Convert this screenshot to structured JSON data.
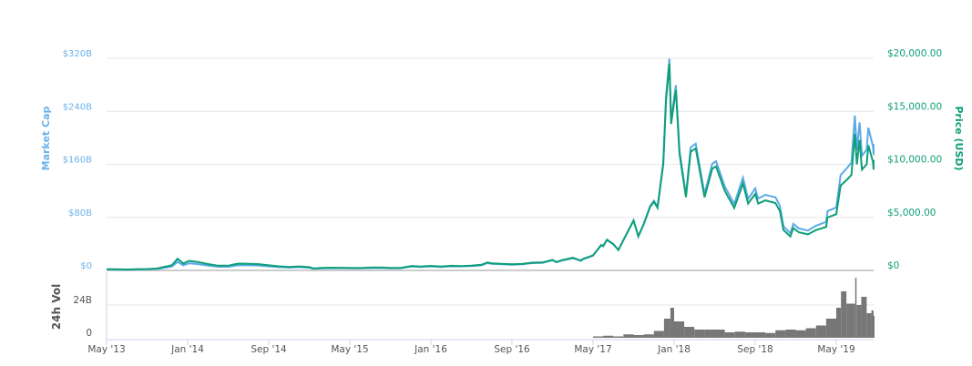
{
  "chart_data": {
    "type": "line",
    "left_axis": {
      "label": "Market Cap",
      "ticks": [
        "$0",
        "$80B",
        "$160B",
        "$240B",
        "$320B"
      ],
      "range": [
        0,
        320
      ],
      "unit": "billion USD",
      "color": "#6cb2eb"
    },
    "right_axis": {
      "label": "Price (USD)",
      "ticks": [
        "$0",
        "$5,000.00",
        "$10,000.00",
        "$15,000.00",
        "$20,000.00"
      ],
      "range": [
        0,
        20000
      ],
      "color": "#0e9f78"
    },
    "volume_axis": {
      "label": "24h Vol",
      "ticks": [
        "0",
        "24B"
      ],
      "unit": "billion USD",
      "color": "#777777"
    },
    "x_ticks": [
      "May '13",
      "Jan '14",
      "Sep '14",
      "May '15",
      "Jan '16",
      "Sep '16",
      "May '17",
      "Jan '18",
      "Sep '18",
      "May '19"
    ],
    "grid": true,
    "series": [
      {
        "name": "Market Cap",
        "color": "#5aaae6",
        "axis": "left"
      },
      {
        "name": "Price (USD)",
        "color": "#0e9f78",
        "axis": "right"
      },
      {
        "name": "24h Vol",
        "color": "#777777",
        "axis": "volume"
      }
    ],
    "price": [
      [
        "2013-05-01",
        120
      ],
      [
        "2013-06-01",
        108
      ],
      [
        "2013-07-01",
        90
      ],
      [
        "2013-08-01",
        120
      ],
      [
        "2013-09-01",
        130
      ],
      [
        "2013-10-01",
        180
      ],
      [
        "2013-11-15",
        500
      ],
      [
        "2013-12-01",
        1100
      ],
      [
        "2013-12-18",
        650
      ],
      [
        "2014-01-05",
        900
      ],
      [
        "2014-02-01",
        800
      ],
      [
        "2014-03-01",
        600
      ],
      [
        "2014-04-01",
        450
      ],
      [
        "2014-05-01",
        450
      ],
      [
        "2014-06-01",
        640
      ],
      [
        "2014-07-01",
        620
      ],
      [
        "2014-08-01",
        590
      ],
      [
        "2014-09-01",
        480
      ],
      [
        "2014-10-01",
        390
      ],
      [
        "2014-11-01",
        330
      ],
      [
        "2014-12-01",
        380
      ],
      [
        "2015-01-01",
        310
      ],
      [
        "2015-01-15",
        180
      ],
      [
        "2015-02-01",
        225
      ],
      [
        "2015-03-01",
        255
      ],
      [
        "2015-04-01",
        245
      ],
      [
        "2015-05-01",
        235
      ],
      [
        "2015-06-01",
        225
      ],
      [
        "2015-07-01",
        265
      ],
      [
        "2015-08-01",
        285
      ],
      [
        "2015-09-01",
        230
      ],
      [
        "2015-10-01",
        237
      ],
      [
        "2015-11-04",
        420
      ],
      [
        "2015-12-01",
        370
      ],
      [
        "2016-01-01",
        430
      ],
      [
        "2016-02-01",
        370
      ],
      [
        "2016-03-01",
        435
      ],
      [
        "2016-04-01",
        415
      ],
      [
        "2016-05-01",
        450
      ],
      [
        "2016-06-01",
        530
      ],
      [
        "2016-06-18",
        750
      ],
      [
        "2016-07-01",
        670
      ],
      [
        "2016-08-01",
        620
      ],
      [
        "2016-09-01",
        575
      ],
      [
        "2016-10-01",
        610
      ],
      [
        "2016-11-01",
        730
      ],
      [
        "2016-12-01",
        750
      ],
      [
        "2017-01-01",
        1000
      ],
      [
        "2017-01-12",
        800
      ],
      [
        "2017-02-01",
        980
      ],
      [
        "2017-03-01",
        1190
      ],
      [
        "2017-03-25",
        930
      ],
      [
        "2017-04-01",
        1080
      ],
      [
        "2017-05-01",
        1420
      ],
      [
        "2017-05-25",
        2400
      ],
      [
        "2017-06-01",
        2300
      ],
      [
        "2017-06-12",
        2900
      ],
      [
        "2017-07-01",
        2480
      ],
      [
        "2017-07-16",
        1930
      ],
      [
        "2017-08-01",
        2870
      ],
      [
        "2017-09-01",
        4700
      ],
      [
        "2017-09-15",
        3200
      ],
      [
        "2017-10-01",
        4340
      ],
      [
        "2017-10-20",
        6000
      ],
      [
        "2017-11-01",
        6470
      ],
      [
        "2017-11-12",
        5900
      ],
      [
        "2017-11-29",
        10000
      ],
      [
        "2017-12-07",
        16000
      ],
      [
        "2017-12-17",
        19500
      ],
      [
        "2017-12-22",
        13800
      ],
      [
        "2018-01-06",
        17000
      ],
      [
        "2018-01-17",
        11000
      ],
      [
        "2018-02-06",
        6900
      ],
      [
        "2018-02-20",
        11200
      ],
      [
        "2018-03-05",
        11500
      ],
      [
        "2018-03-31",
        6900
      ],
      [
        "2018-04-24",
        9600
      ],
      [
        "2018-05-05",
        9800
      ],
      [
        "2018-06-01",
        7500
      ],
      [
        "2018-06-29",
        5900
      ],
      [
        "2018-07-25",
        8200
      ],
      [
        "2018-08-10",
        6300
      ],
      [
        "2018-09-01",
        7200
      ],
      [
        "2018-09-10",
        6300
      ],
      [
        "2018-10-01",
        6600
      ],
      [
        "2018-11-01",
        6350
      ],
      [
        "2018-11-14",
        5600
      ],
      [
        "2018-11-25",
        3800
      ],
      [
        "2018-12-15",
        3200
      ],
      [
        "2018-12-24",
        4000
      ],
      [
        "2019-01-10",
        3600
      ],
      [
        "2019-02-07",
        3400
      ],
      [
        "2019-03-01",
        3800
      ],
      [
        "2019-04-01",
        4100
      ],
      [
        "2019-04-05",
        5000
      ],
      [
        "2019-05-01",
        5300
      ],
      [
        "2019-05-14",
        8000
      ],
      [
        "2019-06-01",
        8500
      ],
      [
        "2019-06-16",
        9000
      ],
      [
        "2019-06-26",
        12900
      ],
      [
        "2019-07-02",
        10000
      ],
      [
        "2019-07-10",
        12300
      ],
      [
        "2019-07-17",
        9500
      ],
      [
        "2019-07-31",
        10000
      ],
      [
        "2019-08-06",
        11800
      ],
      [
        "2019-08-20",
        10200
      ],
      [
        "2019-08-29",
        9500
      ],
      [
        "2019-09-05",
        10400
      ],
      [
        "2019-09-10",
        10100
      ]
    ],
    "volume": [
      [
        "2017-05-01",
        1.0
      ],
      [
        "2017-06-01",
        1.5
      ],
      [
        "2017-07-01",
        1.0
      ],
      [
        "2017-08-01",
        2.5
      ],
      [
        "2017-09-01",
        2.0
      ],
      [
        "2017-10-01",
        2.5
      ],
      [
        "2017-11-01",
        5.0
      ],
      [
        "2017-12-01",
        14
      ],
      [
        "2017-12-20",
        22
      ],
      [
        "2018-01-01",
        12
      ],
      [
        "2018-02-01",
        8
      ],
      [
        "2018-03-01",
        6
      ],
      [
        "2018-04-01",
        6
      ],
      [
        "2018-05-01",
        6
      ],
      [
        "2018-06-01",
        4
      ],
      [
        "2018-07-01",
        4.5
      ],
      [
        "2018-08-01",
        4
      ],
      [
        "2018-09-01",
        4
      ],
      [
        "2018-10-01",
        3.5
      ],
      [
        "2018-11-01",
        5.5
      ],
      [
        "2018-12-01",
        6
      ],
      [
        "2019-01-01",
        5.5
      ],
      [
        "2019-02-01",
        7
      ],
      [
        "2019-03-01",
        9
      ],
      [
        "2019-04-01",
        14
      ],
      [
        "2019-05-01",
        22
      ],
      [
        "2019-05-15",
        34
      ],
      [
        "2019-06-01",
        25
      ],
      [
        "2019-06-27",
        44
      ],
      [
        "2019-07-01",
        24
      ],
      [
        "2019-07-15",
        30
      ],
      [
        "2019-08-01",
        18
      ],
      [
        "2019-08-15",
        20
      ],
      [
        "2019-09-01",
        16
      ]
    ]
  }
}
